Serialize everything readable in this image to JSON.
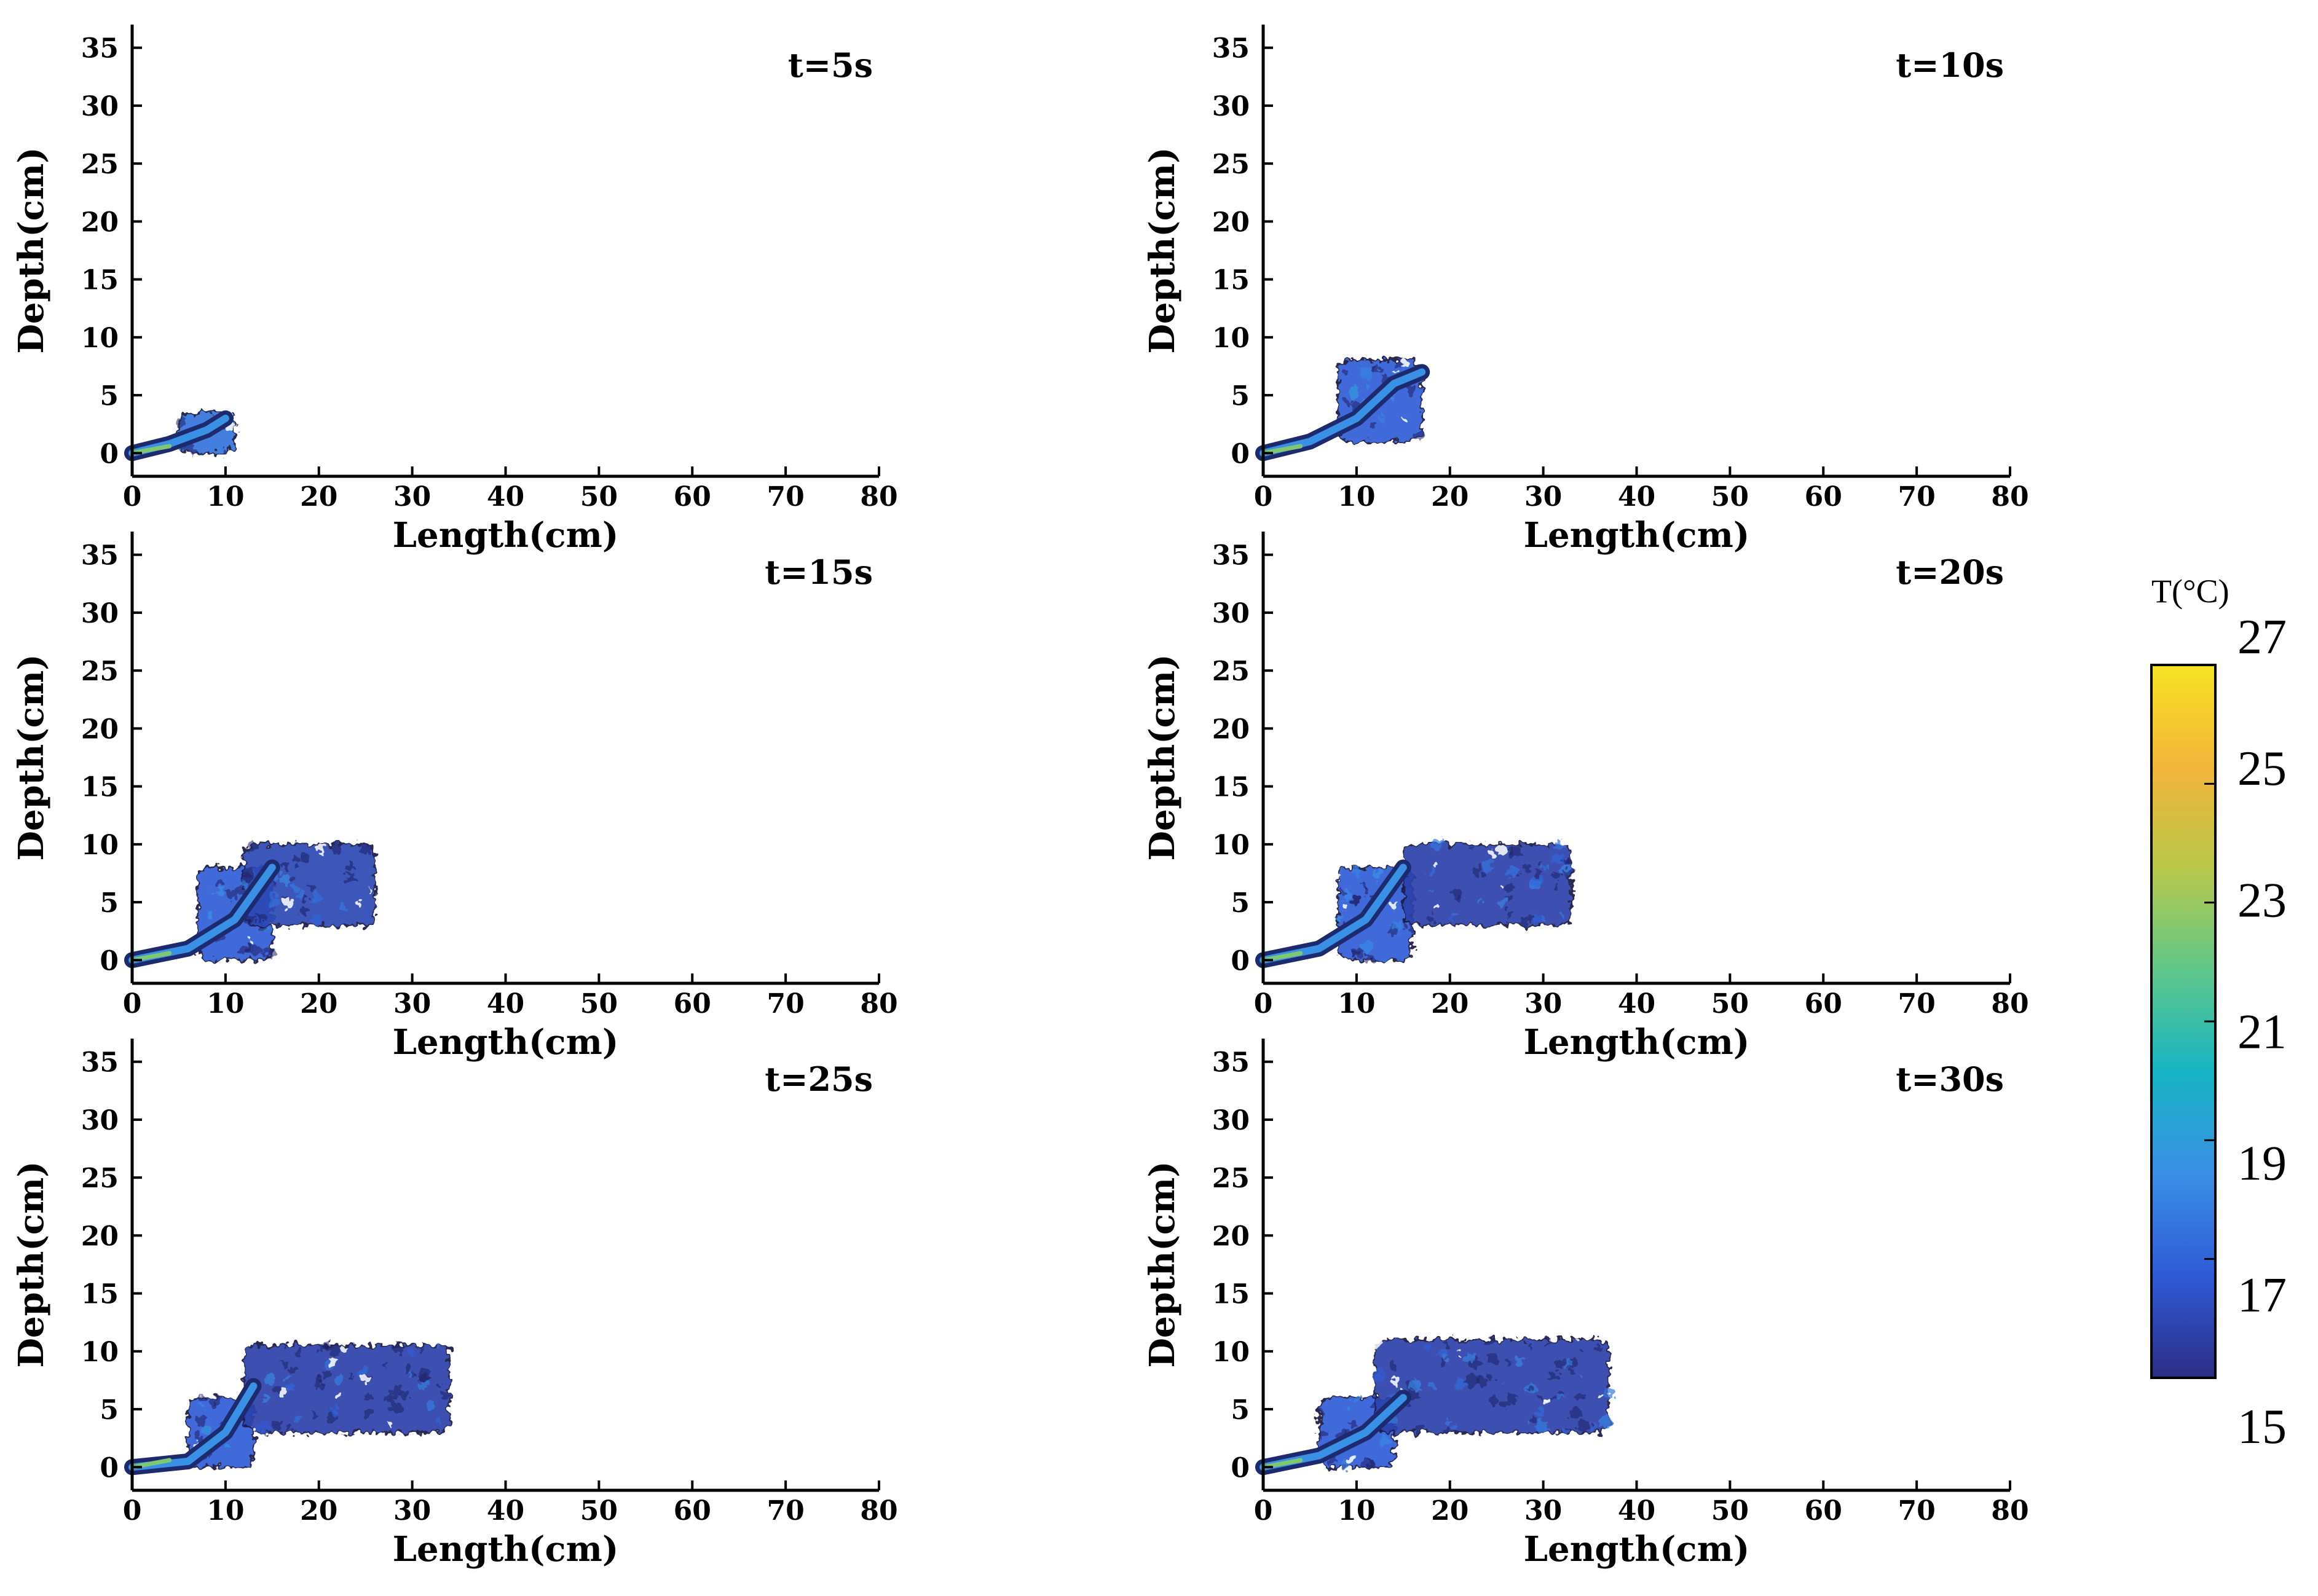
{
  "chart_data": {
    "type": "heatmap",
    "axis_x_label": "Length(cm)",
    "axis_y_label": "Depth(cm)",
    "xlim": [
      0,
      80
    ],
    "ylim": [
      -2,
      37
    ],
    "x_ticks": [
      0,
      10,
      20,
      30,
      40,
      50,
      60,
      70,
      80
    ],
    "y_ticks": [
      0,
      5,
      10,
      15,
      20,
      25,
      30,
      35
    ],
    "colorbar": {
      "title": "T(°C)",
      "ticks": [
        15,
        17,
        19,
        21,
        23,
        25,
        27
      ],
      "range": [
        15,
        27
      ],
      "colors": [
        "#2b2d85",
        "#2f5bd6",
        "#3a8fe6",
        "#17b4c4",
        "#5fc78a",
        "#b8c84a",
        "#f2b53a",
        "#f7e322"
      ]
    },
    "panels": [
      {
        "label": "t=5s",
        "plume_color_value": 17,
        "jet_path": [
          [
            0,
            0
          ],
          [
            4,
            0.8
          ],
          [
            8,
            2
          ],
          [
            10,
            3
          ]
        ],
        "plume_regions": [
          {
            "x": [
              5,
              11
            ],
            "y": [
              0,
              3.5
            ],
            "mean_T": 17.5
          }
        ]
      },
      {
        "label": "t=10s",
        "plume_color_value": 16.5,
        "jet_path": [
          [
            0,
            0
          ],
          [
            5,
            1
          ],
          [
            10,
            3
          ],
          [
            14,
            6
          ],
          [
            17,
            7
          ]
        ],
        "plume_regions": [
          {
            "x": [
              8,
              17
            ],
            "y": [
              1,
              8
            ],
            "mean_T": 16.8
          }
        ]
      },
      {
        "label": "t=15s",
        "plume_color_value": 16,
        "jet_path": [
          [
            0,
            0
          ],
          [
            6,
            1
          ],
          [
            11,
            3.5
          ],
          [
            15,
            8
          ]
        ],
        "plume_regions": [
          {
            "x": [
              7,
              15
            ],
            "y": [
              0,
              8
            ],
            "mean_T": 16.8
          },
          {
            "x": [
              12,
              26
            ],
            "y": [
              3,
              10
            ],
            "mean_T": 16
          }
        ]
      },
      {
        "label": "t=20s",
        "plume_color_value": 16,
        "jet_path": [
          [
            0,
            0
          ],
          [
            6,
            1
          ],
          [
            11,
            3.5
          ],
          [
            15,
            8
          ]
        ],
        "plume_regions": [
          {
            "x": [
              8,
              16
            ],
            "y": [
              0,
              8
            ],
            "mean_T": 16.8
          },
          {
            "x": [
              15,
              33
            ],
            "y": [
              3,
              10
            ],
            "mean_T": 15.8
          }
        ]
      },
      {
        "label": "t=25s",
        "plume_color_value": 16,
        "jet_path": [
          [
            0,
            0
          ],
          [
            6,
            0.5
          ],
          [
            10,
            3
          ],
          [
            13,
            7
          ]
        ],
        "plume_regions": [
          {
            "x": [
              6,
              13
            ],
            "y": [
              0,
              6
            ],
            "mean_T": 16.8
          },
          {
            "x": [
              12,
              34
            ],
            "y": [
              3,
              10.5
            ],
            "mean_T": 15.8
          }
        ]
      },
      {
        "label": "t=30s",
        "plume_color_value": 16,
        "jet_path": [
          [
            0,
            0
          ],
          [
            6,
            1
          ],
          [
            11,
            3
          ],
          [
            15,
            6
          ]
        ],
        "plume_regions": [
          {
            "x": [
              6,
              14
            ],
            "y": [
              0,
              6
            ],
            "mean_T": 16.8
          },
          {
            "x": [
              12,
              37
            ],
            "y": [
              3,
              11
            ],
            "mean_T": 15.8
          }
        ]
      }
    ]
  }
}
